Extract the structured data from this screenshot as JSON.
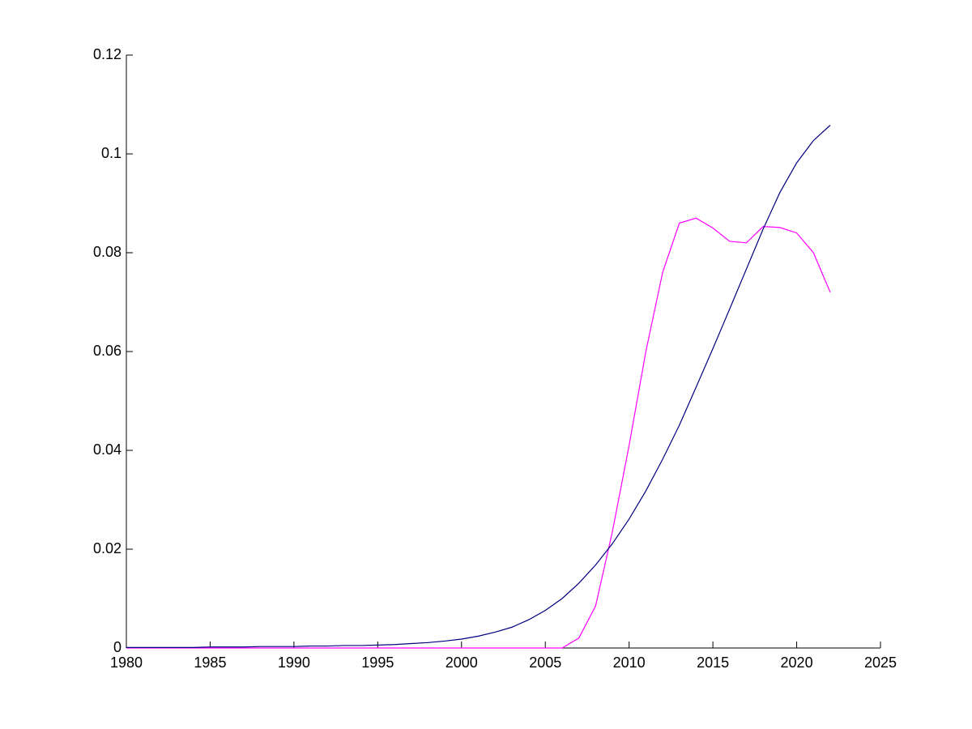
{
  "chart_data": {
    "type": "line",
    "x": [
      1980,
      1981,
      1982,
      1983,
      1984,
      1985,
      1986,
      1987,
      1988,
      1989,
      1990,
      1991,
      1992,
      1993,
      1994,
      1995,
      1996,
      1997,
      1998,
      1999,
      2000,
      2001,
      2002,
      2003,
      2004,
      2005,
      2006,
      2007,
      2008,
      2009,
      2010,
      2011,
      2012,
      2013,
      2014,
      2015,
      2016,
      2017,
      2018,
      2019,
      2020,
      2021,
      2022
    ],
    "series": [
      {
        "color": "#ff00ff",
        "values": [
          0,
          0,
          0,
          0,
          0,
          0,
          0,
          0,
          0,
          0,
          0,
          0,
          0,
          0,
          0,
          0,
          0,
          0,
          0,
          0,
          0,
          0,
          0,
          0,
          0,
          0,
          0,
          0.002,
          0.0085,
          0.0235,
          0.041,
          0.06,
          0.076,
          0.086,
          0.087,
          0.085,
          0.0823,
          0.082,
          0.0853,
          0.0851,
          0.084,
          0.08,
          0.072
        ]
      },
      {
        "color": "#000080",
        "values": [
          0.0001,
          0.0001,
          0.0001,
          0.0001,
          0.0001,
          0.0002,
          0.0002,
          0.0002,
          0.0003,
          0.0003,
          0.0003,
          0.0004,
          0.0004,
          0.0005,
          0.0005,
          0.0006,
          0.0007,
          0.0009,
          0.0011,
          0.0014,
          0.0018,
          0.0024,
          0.0032,
          0.0042,
          0.0057,
          0.0076,
          0.01,
          0.0131,
          0.0168,
          0.0211,
          0.0261,
          0.0318,
          0.0382,
          0.0451,
          0.0528,
          0.0606,
          0.0686,
          0.0767,
          0.0848,
          0.0922,
          0.0982,
          0.1027,
          0.1058
        ]
      }
    ],
    "xlim": [
      1980,
      2025
    ],
    "xticks": [
      1980,
      1985,
      1990,
      1995,
      2000,
      2005,
      2010,
      2015,
      2020,
      2025
    ],
    "ylim": [
      0,
      0.12
    ],
    "yticks": [
      0,
      0.02,
      0.04,
      0.06,
      0.08,
      0.1,
      0.12
    ]
  }
}
